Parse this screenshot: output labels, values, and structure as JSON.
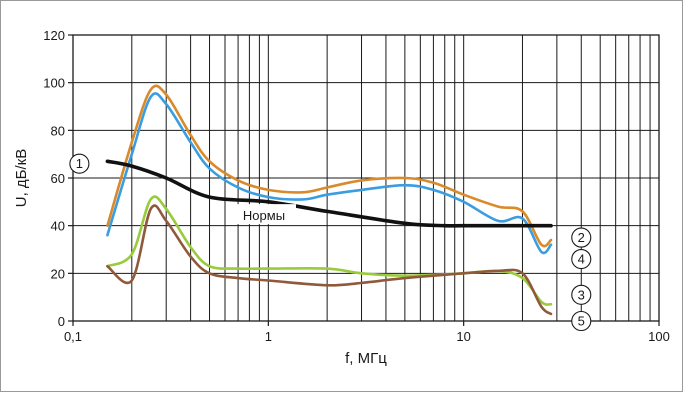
{
  "chart_data": {
    "type": "line",
    "xlabel": "f, МГц",
    "ylabel": "U, дБ/кВ",
    "xscale": "log",
    "xlim": [
      0.1,
      100
    ],
    "ylim": [
      0,
      120
    ],
    "xticks": [
      0.1,
      1,
      10,
      100
    ],
    "xtick_labels": [
      "0,1",
      "1",
      "10",
      "100"
    ],
    "yticks": [
      0,
      20,
      40,
      60,
      80,
      100,
      120
    ],
    "grid": "vertical log grid lines, horizontal lines at each y tick",
    "annotation": {
      "text": "Нормы",
      "x": 0.95,
      "y": 44
    },
    "series": [
      {
        "name": "1",
        "color": "#111111",
        "x": [
          0.15,
          0.2,
          0.3,
          0.5,
          1,
          2,
          5,
          8,
          10,
          20,
          28
        ],
        "y": [
          67,
          65,
          60,
          52,
          50,
          46,
          41,
          40,
          40,
          40,
          40
        ]
      },
      {
        "name": "2",
        "color": "#d98a2b",
        "x": [
          0.15,
          0.2,
          0.25,
          0.3,
          0.4,
          0.5,
          0.7,
          1,
          1.5,
          2,
          3,
          5,
          7,
          10,
          15,
          20,
          25,
          28
        ],
        "y": [
          40,
          75,
          97,
          95,
          78,
          67,
          59,
          55,
          54,
          56,
          59,
          60,
          58,
          53,
          48,
          46,
          32,
          34
        ]
      },
      {
        "name": "4",
        "color": "#3a9de0",
        "x": [
          0.15,
          0.2,
          0.25,
          0.3,
          0.4,
          0.5,
          0.7,
          1,
          1.5,
          2,
          3,
          5,
          7,
          10,
          15,
          20,
          25,
          28
        ],
        "y": [
          36,
          70,
          94,
          91,
          75,
          64,
          56,
          52,
          51,
          53,
          55,
          57,
          55,
          50,
          42,
          43,
          29,
          32
        ]
      },
      {
        "name": "3",
        "color": "#9acb3c",
        "x": [
          0.15,
          0.2,
          0.25,
          0.3,
          0.4,
          0.5,
          0.7,
          1,
          2,
          3,
          5,
          10,
          15,
          20,
          25,
          28
        ],
        "y": [
          23,
          28,
          51,
          47,
          31,
          23,
          22,
          22,
          22,
          20,
          19,
          20,
          21,
          18,
          8,
          7
        ]
      },
      {
        "name": "5",
        "color": "#8f5a3c",
        "x": [
          0.15,
          0.2,
          0.25,
          0.3,
          0.4,
          0.5,
          0.7,
          1,
          2,
          3,
          5,
          10,
          15,
          20,
          25,
          28
        ],
        "y": [
          23,
          17,
          47,
          42,
          27,
          20,
          18,
          17,
          15,
          16,
          18,
          20,
          21,
          20,
          6,
          3
        ]
      }
    ],
    "markers": [
      {
        "label": "1",
        "x": 0.15,
        "y": 66
      },
      {
        "label": "2",
        "x": 40,
        "y": 35
      },
      {
        "label": "4",
        "x": 40,
        "y": 26
      },
      {
        "label": "3",
        "x": 40,
        "y": 11
      },
      {
        "label": "5",
        "x": 40,
        "y": 0
      }
    ]
  }
}
